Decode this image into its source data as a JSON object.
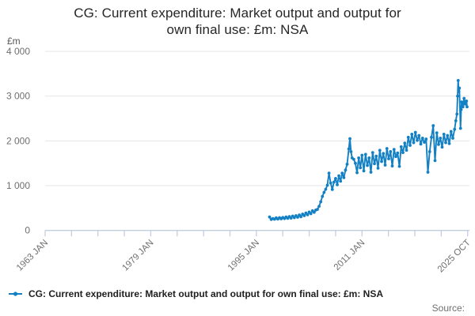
{
  "title": {
    "line1": "CG: Current expenditure: Market output and output for",
    "line2": "own final use: £m: NSA",
    "full": "CG: Current expenditure: Market output and output for own final use: £m: NSA"
  },
  "footer": {
    "source_label": "Source:"
  },
  "colors": {
    "series": "#1380c4",
    "grid": "#e4e4e4",
    "axis": "#c2cfe0",
    "muted_text": "#6f6f6f",
    "title_text": "#262626"
  },
  "chart_data": {
    "type": "line",
    "title": "CG: Current expenditure: Market output and output for own final use: £m: NSA",
    "xlabel": "",
    "ylabel": "£m",
    "ylim": [
      0,
      4000
    ],
    "yticks": [
      0,
      1000,
      2000,
      3000,
      4000
    ],
    "ytick_labels": [
      "0",
      "1 000",
      "2 000",
      "3 000",
      "4 000"
    ],
    "x_tick_count": 17,
    "labeled_tick_indices": [
      0,
      4,
      8,
      12,
      16
    ],
    "xtick_labels": [
      "1963 JAN",
      "1979 JAN",
      "1995 JAN",
      "2011 JAN",
      "2025 OCT"
    ],
    "x_axis_anchor_years": [
      1963.0,
      2011.0,
      2025.83
    ],
    "grid": true,
    "legend_position": "bottom-left",
    "marker": "circle",
    "series": [
      {
        "name": "CG: Current expenditure: Market output and output for own final use: £m: NSA",
        "color": "#1380c4",
        "points": [
          [
            1997.0,
            300
          ],
          [
            1997.25,
            245
          ],
          [
            1997.5,
            265
          ],
          [
            1997.75,
            250
          ],
          [
            1998.0,
            280
          ],
          [
            1998.25,
            255
          ],
          [
            1998.5,
            285
          ],
          [
            1998.75,
            260
          ],
          [
            1999.0,
            290
          ],
          [
            1999.25,
            265
          ],
          [
            1999.5,
            300
          ],
          [
            1999.75,
            270
          ],
          [
            2000.0,
            310
          ],
          [
            2000.25,
            275
          ],
          [
            2000.5,
            320
          ],
          [
            2000.75,
            285
          ],
          [
            2001.0,
            330
          ],
          [
            2001.25,
            295
          ],
          [
            2001.5,
            345
          ],
          [
            2001.75,
            305
          ],
          [
            2002.0,
            365
          ],
          [
            2002.25,
            330
          ],
          [
            2002.5,
            390
          ],
          [
            2002.75,
            350
          ],
          [
            2003.0,
            410
          ],
          [
            2003.25,
            375
          ],
          [
            2003.5,
            440
          ],
          [
            2003.75,
            405
          ],
          [
            2004.0,
            455
          ],
          [
            2004.25,
            470
          ],
          [
            2004.5,
            540
          ],
          [
            2004.75,
            640
          ],
          [
            2005.0,
            760
          ],
          [
            2005.25,
            850
          ],
          [
            2005.5,
            920
          ],
          [
            2005.75,
            1010
          ],
          [
            2006.0,
            1280
          ],
          [
            2006.25,
            1060
          ],
          [
            2006.5,
            915
          ],
          [
            2006.75,
            1080
          ],
          [
            2007.0,
            1160
          ],
          [
            2007.25,
            1020
          ],
          [
            2007.5,
            1220
          ],
          [
            2007.75,
            1100
          ],
          [
            2008.0,
            1280
          ],
          [
            2008.25,
            1180
          ],
          [
            2008.5,
            1350
          ],
          [
            2008.75,
            1480
          ],
          [
            2009.0,
            1820
          ],
          [
            2009.17,
            2050
          ],
          [
            2009.33,
            1760
          ],
          [
            2009.5,
            1620
          ],
          [
            2009.75,
            1590
          ],
          [
            2010.0,
            1500
          ],
          [
            2010.25,
            1290
          ],
          [
            2010.5,
            1620
          ],
          [
            2010.75,
            1400
          ],
          [
            2011.0,
            1680
          ],
          [
            2011.25,
            1330
          ],
          [
            2011.5,
            1700
          ],
          [
            2011.75,
            1450
          ],
          [
            2012.0,
            1620
          ],
          [
            2012.25,
            1300
          ],
          [
            2012.5,
            1740
          ],
          [
            2012.75,
            1490
          ],
          [
            2013.0,
            1660
          ],
          [
            2013.25,
            1390
          ],
          [
            2013.5,
            1790
          ],
          [
            2013.75,
            1540
          ],
          [
            2014.0,
            1720
          ],
          [
            2014.25,
            1460
          ],
          [
            2014.5,
            1830
          ],
          [
            2014.75,
            1600
          ],
          [
            2015.0,
            1760
          ],
          [
            2015.25,
            1440
          ],
          [
            2015.5,
            1810
          ],
          [
            2015.75,
            1650
          ],
          [
            2016.0,
            1730
          ],
          [
            2016.25,
            1430
          ],
          [
            2016.5,
            1870
          ],
          [
            2016.75,
            1740
          ],
          [
            2017.0,
            1950
          ],
          [
            2017.25,
            1790
          ],
          [
            2017.5,
            2080
          ],
          [
            2017.75,
            1900
          ],
          [
            2018.0,
            2150
          ],
          [
            2018.25,
            1960
          ],
          [
            2018.5,
            2190
          ],
          [
            2018.75,
            2010
          ],
          [
            2019.0,
            2120
          ],
          [
            2019.25,
            1930
          ],
          [
            2019.5,
            2060
          ],
          [
            2019.75,
            1970
          ],
          [
            2020.0,
            2040
          ],
          [
            2020.25,
            1300
          ],
          [
            2020.5,
            1760
          ],
          [
            2020.75,
            2080
          ],
          [
            2021.0,
            2340
          ],
          [
            2021.25,
            1560
          ],
          [
            2021.5,
            2180
          ],
          [
            2021.75,
            1920
          ],
          [
            2022.0,
            2060
          ],
          [
            2022.25,
            1860
          ],
          [
            2022.5,
            2150
          ],
          [
            2022.75,
            1960
          ],
          [
            2023.0,
            2120
          ],
          [
            2023.25,
            1940
          ],
          [
            2023.5,
            2210
          ],
          [
            2023.75,
            2060
          ],
          [
            2024.0,
            2260
          ],
          [
            2024.17,
            2450
          ],
          [
            2024.33,
            2600
          ],
          [
            2024.42,
            3000
          ],
          [
            2024.5,
            3350
          ],
          [
            2024.58,
            3100
          ],
          [
            2024.67,
            3180
          ],
          [
            2024.83,
            2280
          ],
          [
            2024.92,
            2700
          ],
          [
            2025.0,
            2870
          ],
          [
            2025.17,
            2760
          ],
          [
            2025.33,
            2950
          ],
          [
            2025.5,
            2820
          ],
          [
            2025.67,
            2890
          ],
          [
            2025.75,
            2760
          ]
        ]
      }
    ]
  }
}
